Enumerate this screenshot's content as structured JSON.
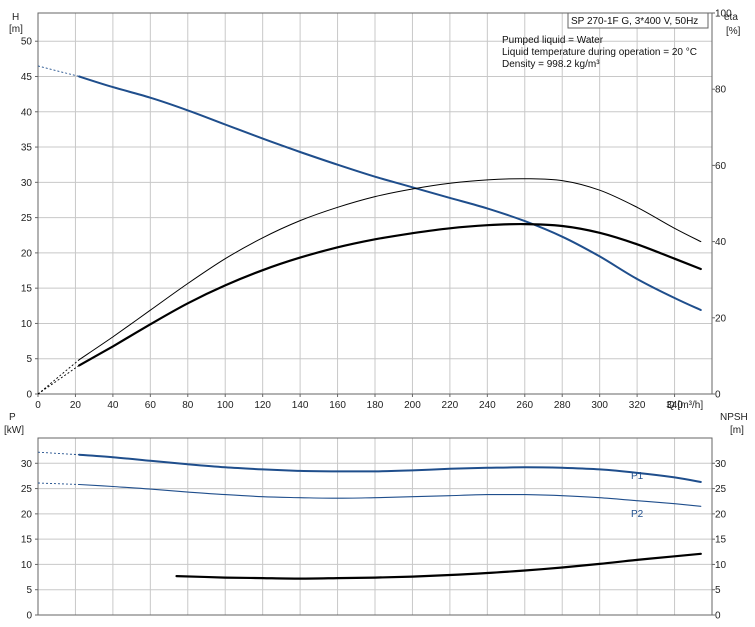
{
  "chart_data": [
    {
      "type": "line",
      "title": "SP 270-1F G, 3*400 V, 50Hz",
      "info_lines": [
        "Pumped liquid = Water",
        "Liquid temperature during operation = 20 °C",
        "Density = 998.2 kg/m³"
      ],
      "xlabel": "Q [m³/h]",
      "xlim": [
        0,
        360
      ],
      "x_ticks": [
        0,
        20,
        40,
        60,
        80,
        100,
        120,
        140,
        160,
        180,
        200,
        220,
        240,
        260,
        280,
        300,
        320,
        340
      ],
      "ylabel_left": "H",
      "ylabel_left_unit": "[m]",
      "ylim_left": [
        0,
        54
      ],
      "y_ticks_left": [
        0,
        5,
        10,
        15,
        20,
        25,
        30,
        35,
        40,
        45,
        50
      ],
      "ylabel_right": "eta",
      "ylabel_right_unit": "[%]",
      "ylim_right": [
        0,
        100
      ],
      "y_ticks_right": [
        0,
        20,
        40,
        60,
        80,
        100
      ],
      "grid": true,
      "series": [
        {
          "key": "H",
          "axis": "left",
          "color": "#1f4e8c",
          "width": 2,
          "x": [
            22,
            40,
            60,
            80,
            100,
            120,
            140,
            160,
            180,
            200,
            220,
            240,
            260,
            280,
            300,
            320,
            340,
            354
          ],
          "values": [
            45,
            43.5,
            42,
            40.2,
            38.2,
            36.2,
            34.3,
            32.5,
            30.8,
            29.3,
            27.8,
            26.3,
            24.5,
            22.3,
            19.5,
            16.3,
            13.6,
            11.9
          ],
          "extrapolation": {
            "x": [
              0,
              22
            ],
            "values": [
              46.5,
              45
            ]
          }
        },
        {
          "key": "eta_total",
          "axis": "right",
          "color": "#000000",
          "width": 1,
          "x": [
            22,
            40,
            60,
            80,
            100,
            120,
            140,
            160,
            180,
            200,
            220,
            240,
            260,
            280,
            300,
            320,
            340,
            354
          ],
          "values": [
            9,
            15,
            22,
            29,
            35.5,
            41,
            45.5,
            49,
            51.8,
            53.8,
            55.3,
            56.2,
            56.5,
            56,
            53.5,
            49,
            43.5,
            40
          ],
          "extrapolation": {
            "x": [
              0,
              22
            ],
            "values": [
              0,
              9
            ]
          }
        },
        {
          "key": "eta_pump",
          "axis": "right",
          "color": "#000000",
          "width": 2.2,
          "x": [
            22,
            40,
            60,
            80,
            100,
            120,
            140,
            160,
            180,
            200,
            220,
            240,
            260,
            280,
            300,
            320,
            340,
            354
          ],
          "values": [
            7.5,
            12.5,
            18.3,
            23.8,
            28.5,
            32.5,
            35.8,
            38.5,
            40.6,
            42.2,
            43.5,
            44.3,
            44.6,
            44.1,
            42.3,
            39.3,
            35.5,
            32.8
          ],
          "extrapolation": {
            "x": [
              0,
              22
            ],
            "values": [
              0,
              7.5
            ]
          }
        }
      ]
    },
    {
      "type": "line",
      "xlim": [
        0,
        360
      ],
      "ylabel_left": "P",
      "ylabel_left_unit": "[kW]",
      "ylim_left": [
        0,
        35
      ],
      "y_ticks_left": [
        0,
        5,
        10,
        15,
        20,
        25,
        30
      ],
      "ylabel_right": "NPSH",
      "ylabel_right_unit": "[m]",
      "ylim_right": [
        0,
        35
      ],
      "y_ticks_right": [
        0,
        5,
        10,
        15,
        20,
        25,
        30
      ],
      "grid": true,
      "series": [
        {
          "name": "P1",
          "axis": "left",
          "color": "#1f4e8c",
          "width": 2,
          "x": [
            22,
            40,
            60,
            80,
            100,
            120,
            140,
            160,
            180,
            200,
            220,
            240,
            260,
            280,
            300,
            320,
            340,
            354
          ],
          "values": [
            31.7,
            31.2,
            30.5,
            29.8,
            29.2,
            28.8,
            28.5,
            28.4,
            28.4,
            28.6,
            28.9,
            29.1,
            29.2,
            29.1,
            28.8,
            28.1,
            27.2,
            26.3
          ],
          "extrapolation": {
            "x": [
              0,
              22
            ],
            "values": [
              32.2,
              31.7
            ]
          }
        },
        {
          "name": "P2",
          "axis": "left",
          "color": "#1f4e8c",
          "width": 1.1,
          "x": [
            22,
            40,
            60,
            80,
            100,
            120,
            140,
            160,
            180,
            200,
            220,
            240,
            260,
            280,
            300,
            320,
            340,
            354
          ],
          "values": [
            25.8,
            25.4,
            24.9,
            24.3,
            23.8,
            23.4,
            23.2,
            23.1,
            23.2,
            23.4,
            23.6,
            23.8,
            23.8,
            23.6,
            23.2,
            22.6,
            22,
            21.5
          ],
          "extrapolation": {
            "x": [
              0,
              22
            ],
            "values": [
              26.1,
              25.8
            ]
          }
        },
        {
          "key": "NPSH",
          "axis": "right",
          "color": "#000000",
          "width": 2.2,
          "x": [
            74,
            100,
            120,
            140,
            160,
            180,
            200,
            220,
            240,
            260,
            280,
            300,
            320,
            340,
            354
          ],
          "values": [
            7.7,
            7.4,
            7.3,
            7.2,
            7.3,
            7.4,
            7.6,
            7.9,
            8.3,
            8.8,
            9.4,
            10.1,
            10.9,
            11.6,
            12.1
          ]
        }
      ]
    }
  ]
}
